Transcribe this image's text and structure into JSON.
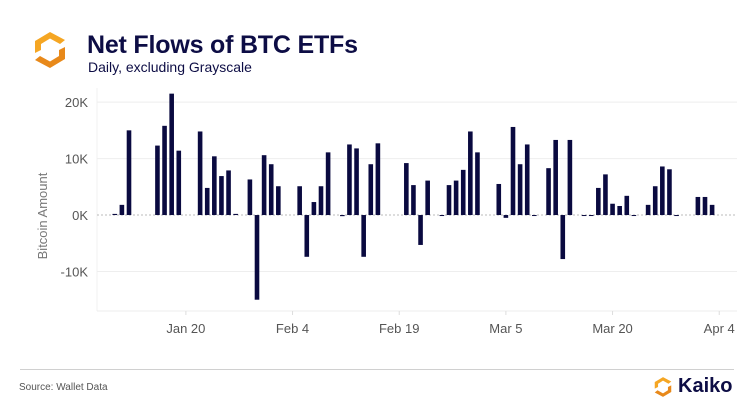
{
  "header": {
    "title": "Net Flows of BTC ETFs",
    "subtitle": "Daily, excluding Grayscale",
    "logo_icon": "kaiko-hexagon-icon"
  },
  "footer": {
    "source": "Source: Wallet Data",
    "brand": "Kaiko",
    "logo_icon": "kaiko-hexagon-icon"
  },
  "colors": {
    "bar": "#0a0a40",
    "logo_orange": "#f5a623",
    "logo_dark_orange": "#e8891a",
    "title": "#0d0d45",
    "grid": "#eeeeee"
  },
  "chart_data": {
    "type": "bar",
    "title": "Net Flows of BTC ETFs",
    "subtitle": "Daily, excluding Grayscale",
    "xlabel": "",
    "ylabel": "Bitcoin Amount",
    "ylim": [
      -17,
      22.5
    ],
    "xlim_days_from_jan10": [
      -2.5,
      87.5
    ],
    "y_ticks": [
      {
        "value": 20,
        "label": "20K"
      },
      {
        "value": 10,
        "label": "10K"
      },
      {
        "value": 0,
        "label": "0K"
      },
      {
        "value": -10,
        "label": "-10K"
      }
    ],
    "x_ticks": [
      {
        "day": 10,
        "label": "Jan 20"
      },
      {
        "day": 25,
        "label": "Feb 4"
      },
      {
        "day": 40,
        "label": "Feb 19"
      },
      {
        "day": 55,
        "label": "Mar 5"
      },
      {
        "day": 70,
        "label": "Mar 20"
      },
      {
        "day": 85,
        "label": "Apr 4"
      }
    ],
    "grid": true,
    "units": "thousand BTC",
    "x_unit": "days since Jan 10",
    "bars": [
      {
        "day": 0,
        "value": 0.2
      },
      {
        "day": 1,
        "value": 1.8
      },
      {
        "day": 2,
        "value": 15.0
      },
      {
        "day": 6,
        "value": 12.3
      },
      {
        "day": 7,
        "value": 15.8
      },
      {
        "day": 8,
        "value": 21.5
      },
      {
        "day": 9,
        "value": 11.4
      },
      {
        "day": 12,
        "value": 14.8
      },
      {
        "day": 13,
        "value": 4.8
      },
      {
        "day": 14,
        "value": 10.4
      },
      {
        "day": 15,
        "value": 6.9
      },
      {
        "day": 16,
        "value": 7.9
      },
      {
        "day": 17,
        "value": 0.2
      },
      {
        "day": 19,
        "value": 6.3
      },
      {
        "day": 20,
        "value": -15.0
      },
      {
        "day": 21,
        "value": 10.6
      },
      {
        "day": 22,
        "value": 9.0
      },
      {
        "day": 23,
        "value": 5.1
      },
      {
        "day": 26,
        "value": 5.1
      },
      {
        "day": 27,
        "value": -7.4
      },
      {
        "day": 28,
        "value": 2.3
      },
      {
        "day": 29,
        "value": 5.1
      },
      {
        "day": 30,
        "value": 11.1
      },
      {
        "day": 32,
        "value": -0.2
      },
      {
        "day": 33,
        "value": 12.5
      },
      {
        "day": 34,
        "value": 11.8
      },
      {
        "day": 35,
        "value": -7.4
      },
      {
        "day": 36,
        "value": 9.0
      },
      {
        "day": 37,
        "value": 12.7
      },
      {
        "day": 41,
        "value": 9.2
      },
      {
        "day": 42,
        "value": 5.3
      },
      {
        "day": 43,
        "value": -5.3
      },
      {
        "day": 44,
        "value": 6.1
      },
      {
        "day": 46,
        "value": -0.1
      },
      {
        "day": 47,
        "value": 5.3
      },
      {
        "day": 48,
        "value": 6.1
      },
      {
        "day": 49,
        "value": 8.0
      },
      {
        "day": 50,
        "value": 14.8
      },
      {
        "day": 51,
        "value": 11.1
      },
      {
        "day": 54,
        "value": 5.5
      },
      {
        "day": 55,
        "value": -0.5
      },
      {
        "day": 56,
        "value": 15.6
      },
      {
        "day": 57,
        "value": 9.0
      },
      {
        "day": 58,
        "value": 12.5
      },
      {
        "day": 59,
        "value": -0.1
      },
      {
        "day": 61,
        "value": 8.3
      },
      {
        "day": 62,
        "value": 13.3
      },
      {
        "day": 63,
        "value": -7.8
      },
      {
        "day": 64,
        "value": 13.3
      },
      {
        "day": 66,
        "value": -0.1
      },
      {
        "day": 67,
        "value": -0.1
      },
      {
        "day": 68,
        "value": 4.8
      },
      {
        "day": 69,
        "value": 7.2
      },
      {
        "day": 70,
        "value": 2.0
      },
      {
        "day": 71,
        "value": 1.6
      },
      {
        "day": 72,
        "value": 3.4
      },
      {
        "day": 73,
        "value": -0.1
      },
      {
        "day": 75,
        "value": 1.8
      },
      {
        "day": 76,
        "value": 5.1
      },
      {
        "day": 77,
        "value": 8.6
      },
      {
        "day": 78,
        "value": 8.1
      },
      {
        "day": 79,
        "value": -0.1
      },
      {
        "day": 82,
        "value": 3.2
      },
      {
        "day": 83,
        "value": 3.2
      },
      {
        "day": 84,
        "value": 1.8
      }
    ]
  }
}
